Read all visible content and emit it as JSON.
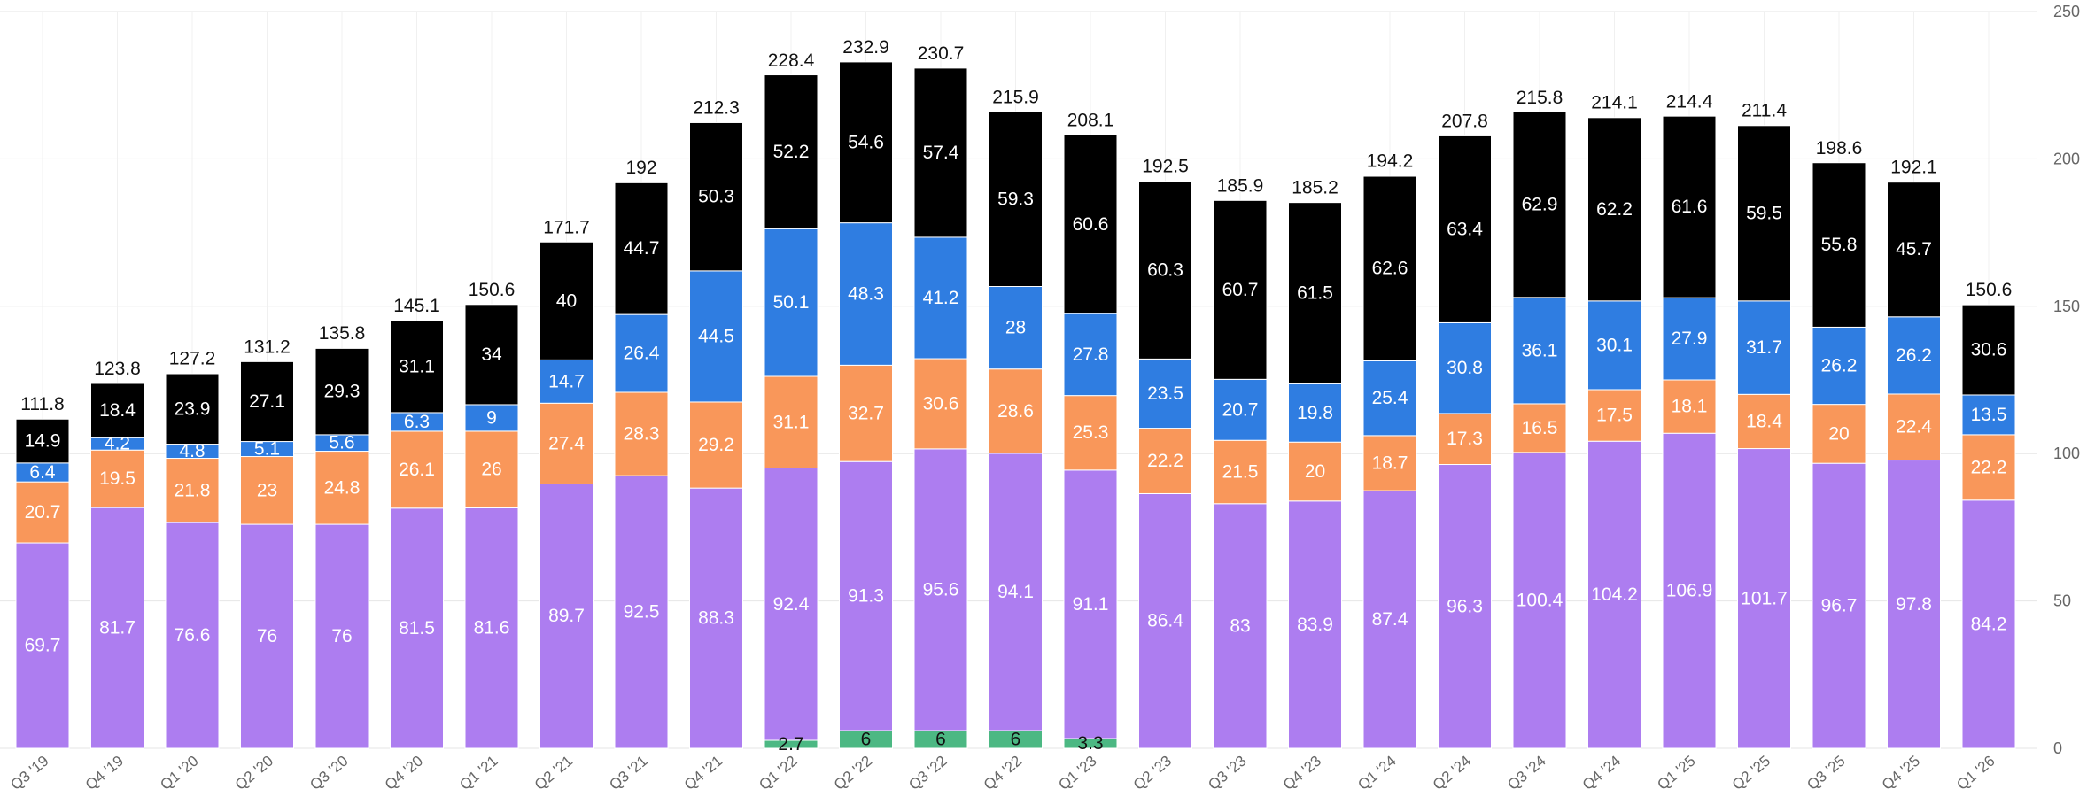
{
  "chart_data": {
    "type": "bar",
    "stacked": true,
    "title": "",
    "xlabel": "",
    "ylabel": "",
    "ylim": [
      0,
      250
    ],
    "yticks": [
      0,
      50,
      100,
      150,
      200,
      250
    ],
    "grid": true,
    "legend": "none",
    "categories": [
      "Q3 '19",
      "Q4 '19",
      "Q1 '20",
      "Q2 '20",
      "Q3 '20",
      "Q4 '20",
      "Q1 '21",
      "Q2 '21",
      "Q3 '21",
      "Q4 '21",
      "Q1 '22",
      "Q2 '22",
      "Q3 '22",
      "Q4 '22",
      "Q1 '23",
      "Q2 '23",
      "Q3 '23",
      "Q4 '23",
      "Q1 '24",
      "Q2 '24",
      "Q3 '24",
      "Q4 '24",
      "Q1 '25",
      "Q2 '25",
      "Q3 '25",
      "Q4 '25",
      "Q1 '26"
    ],
    "totals": [
      111.8,
      123.8,
      127.2,
      131.2,
      135.8,
      145.1,
      150.6,
      171.7,
      192,
      212.3,
      228.4,
      232.9,
      230.7,
      215.9,
      208.1,
      192.5,
      185.9,
      185.2,
      194.2,
      207.8,
      215.8,
      214.1,
      214.4,
      211.4,
      198.6,
      192.1,
      150.6
    ],
    "series": [
      {
        "color": "#4cb883",
        "label_color": "#111111",
        "values": [
          0,
          0,
          0,
          0,
          0,
          0,
          0,
          0,
          0,
          0,
          2.7,
          6,
          6,
          6,
          3.3,
          0,
          0,
          0,
          0,
          0,
          0,
          0,
          0,
          0,
          0,
          0,
          0
        ]
      },
      {
        "color": "#ad7df0",
        "label_color": "#ffffff",
        "values": [
          69.7,
          81.7,
          76.6,
          76,
          76,
          81.5,
          81.6,
          89.7,
          92.5,
          88.3,
          92.4,
          91.3,
          95.6,
          94.1,
          91.1,
          86.4,
          83,
          83.9,
          87.4,
          96.3,
          100.4,
          104.2,
          106.9,
          101.7,
          96.7,
          97.8,
          84.2
        ]
      },
      {
        "color": "#f9975a",
        "label_color": "#ffffff",
        "values": [
          20.7,
          19.5,
          21.8,
          23,
          24.8,
          26.1,
          26,
          27.4,
          28.3,
          29.2,
          31.1,
          32.7,
          30.6,
          28.6,
          25.3,
          22.2,
          21.5,
          20,
          18.7,
          17.3,
          16.5,
          17.5,
          18.1,
          18.4,
          20,
          22.4,
          22.2
        ]
      },
      {
        "color": "#2f7de1",
        "label_color": "#ffffff",
        "values": [
          6.4,
          4.2,
          4.8,
          5.1,
          5.6,
          6.3,
          9,
          14.7,
          26.4,
          44.5,
          50.1,
          48.3,
          41.2,
          28,
          27.8,
          23.5,
          20.7,
          19.8,
          25.4,
          30.8,
          36.1,
          30.1,
          27.9,
          31.7,
          26.2,
          26.2,
          13.5
        ]
      },
      {
        "color": "#000000",
        "label_color": "#ffffff",
        "values": [
          14.9,
          18.4,
          23.9,
          27.1,
          29.3,
          31.1,
          34,
          40,
          44.7,
          50.3,
          52.2,
          54.6,
          57.4,
          59.3,
          60.6,
          60.3,
          60.7,
          61.5,
          62.6,
          63.4,
          62.9,
          62.2,
          61.6,
          59.5,
          55.8,
          45.7,
          30.6
        ]
      }
    ]
  }
}
